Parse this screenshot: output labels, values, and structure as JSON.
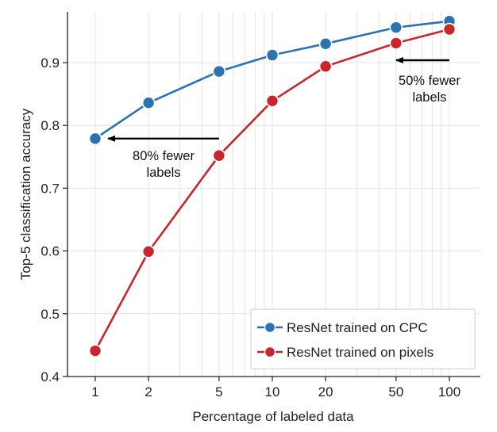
{
  "chart_data": {
    "type": "line",
    "xlabel": "Percentage of labeled data",
    "ylabel": "Top-5 classification accuracy",
    "x_scale": "log",
    "x": [
      1,
      2,
      5,
      10,
      20,
      50,
      100
    ],
    "x_tick_labels": [
      "1",
      "2",
      "5",
      "10",
      "20",
      "50",
      "100"
    ],
    "xlim": [
      1,
      100
    ],
    "ylim": [
      0.4,
      0.97
    ],
    "y_ticks": [
      0.4,
      0.5,
      0.6,
      0.7,
      0.8,
      0.9
    ],
    "y_tick_labels": [
      "0.4",
      "0.5",
      "0.6",
      "0.7",
      "0.8",
      "0.9"
    ],
    "grid": true,
    "legend_position": "bottom-right",
    "series": [
      {
        "name": "ResNet trained on CPC",
        "color": "#2b72b3",
        "values": [
          0.779,
          0.836,
          0.886,
          0.912,
          0.93,
          0.956,
          0.966
        ]
      },
      {
        "name": "ResNet trained on pixels",
        "color": "#c8262c",
        "values": [
          0.441,
          0.599,
          0.752,
          0.839,
          0.894,
          0.931,
          0.953
        ]
      }
    ],
    "annotations": [
      {
        "lines": [
          "80% fewer",
          "labels"
        ],
        "arrow_from_x": 5,
        "arrow_to_x": 1,
        "arrow_y": 0.779
      },
      {
        "lines": [
          "50% fewer",
          "labels"
        ],
        "arrow_from_x": 100,
        "arrow_to_x": 50,
        "arrow_y": 0.9
      }
    ]
  }
}
